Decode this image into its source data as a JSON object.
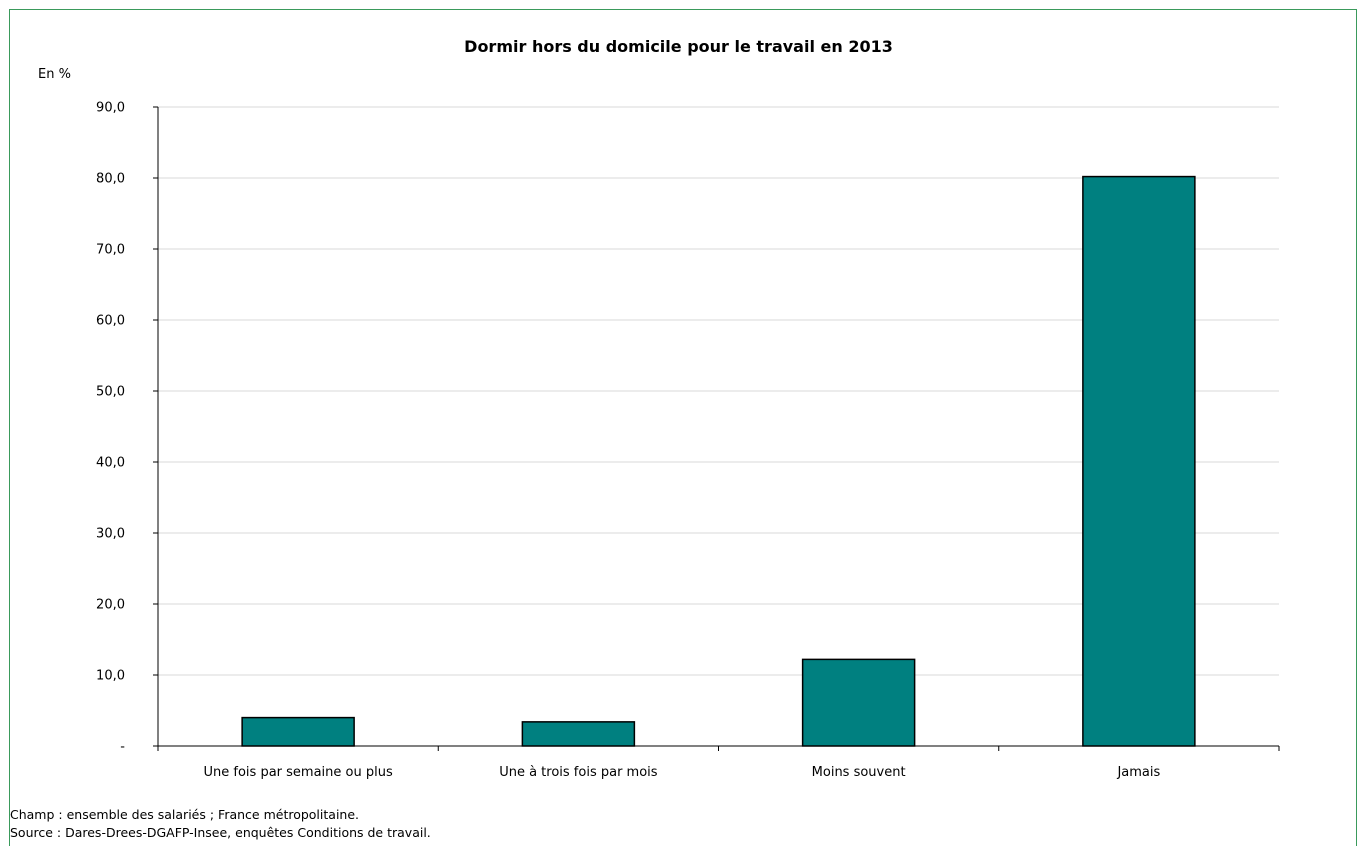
{
  "unit_label": "En %",
  "chart_data": {
    "type": "bar",
    "title": "Dormir hors du domicile pour le travail en 2013",
    "xlabel": "",
    "ylabel": "",
    "categories": [
      "Une fois par semaine ou plus",
      "Une à trois fois par mois",
      "Moins souvent",
      "Jamais"
    ],
    "values": [
      4.0,
      3.4,
      12.2,
      80.2
    ],
    "ylim": [
      0,
      90
    ],
    "yticks": [
      0,
      10,
      20,
      30,
      40,
      50,
      60,
      70,
      80,
      90
    ],
    "ytick_labels": [
      "-",
      "10,0",
      "20,0",
      "30,0",
      "40,0",
      "50,0",
      "60,0",
      "70,0",
      "80,0",
      "90,0"
    ],
    "grid": true,
    "bar_color": "#008080",
    "legend": "none"
  },
  "footnotes": {
    "champ": "Champ : ensemble des salariés ; France métropolitaine.",
    "source": "Source : Dares-Drees-DGAFP-Insee, enquêtes Conditions de travail."
  },
  "colors": {
    "frame_border": "#3a9a5b",
    "gridline": "#d9d9d9"
  }
}
